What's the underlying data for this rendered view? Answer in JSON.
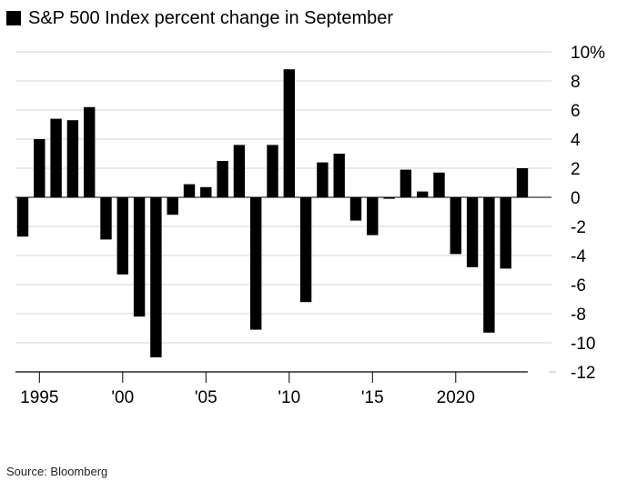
{
  "legend": {
    "label": "S&P 500 Index percent change in September",
    "color": "#000000"
  },
  "source": "Source: Bloomberg",
  "chart_data": {
    "type": "bar",
    "title": "S&P 500 Index percent change in September",
    "x": [
      1994,
      1995,
      1996,
      1997,
      1998,
      1999,
      2000,
      2001,
      2002,
      2003,
      2004,
      2005,
      2006,
      2007,
      2008,
      2009,
      2010,
      2011,
      2012,
      2013,
      2014,
      2015,
      2016,
      2017,
      2018,
      2019,
      2020,
      2021,
      2022,
      2023,
      2024
    ],
    "values": [
      -2.7,
      4.0,
      5.4,
      5.3,
      6.2,
      -2.9,
      -5.3,
      -8.2,
      -11.0,
      -1.2,
      0.9,
      0.7,
      2.5,
      3.6,
      -9.1,
      3.6,
      8.8,
      -7.2,
      2.4,
      3.0,
      -1.6,
      -2.6,
      -0.1,
      1.9,
      0.4,
      1.7,
      -3.9,
      -4.8,
      -9.3,
      -4.9,
      2.0
    ],
    "x_tick_labels": [
      {
        "x": 1995,
        "label": "1995"
      },
      {
        "x": 2000,
        "label": "'00"
      },
      {
        "x": 2005,
        "label": "'05"
      },
      {
        "x": 2010,
        "label": "'10"
      },
      {
        "x": 2015,
        "label": "'15"
      },
      {
        "x": 2020,
        "label": "2020"
      }
    ],
    "y_ticks": [
      10,
      8,
      6,
      4,
      2,
      0,
      -2,
      -4,
      -6,
      -8,
      -10,
      -12
    ],
    "y_tick_labels": [
      "10%",
      "8",
      "6",
      "4",
      "2",
      "0",
      "-2",
      "-4",
      "-6",
      "-8",
      "-10",
      "-12"
    ],
    "ylim": [
      -12,
      10
    ],
    "grid": true,
    "bar_color": "#000000",
    "grid_color": "#e3e3e3"
  }
}
